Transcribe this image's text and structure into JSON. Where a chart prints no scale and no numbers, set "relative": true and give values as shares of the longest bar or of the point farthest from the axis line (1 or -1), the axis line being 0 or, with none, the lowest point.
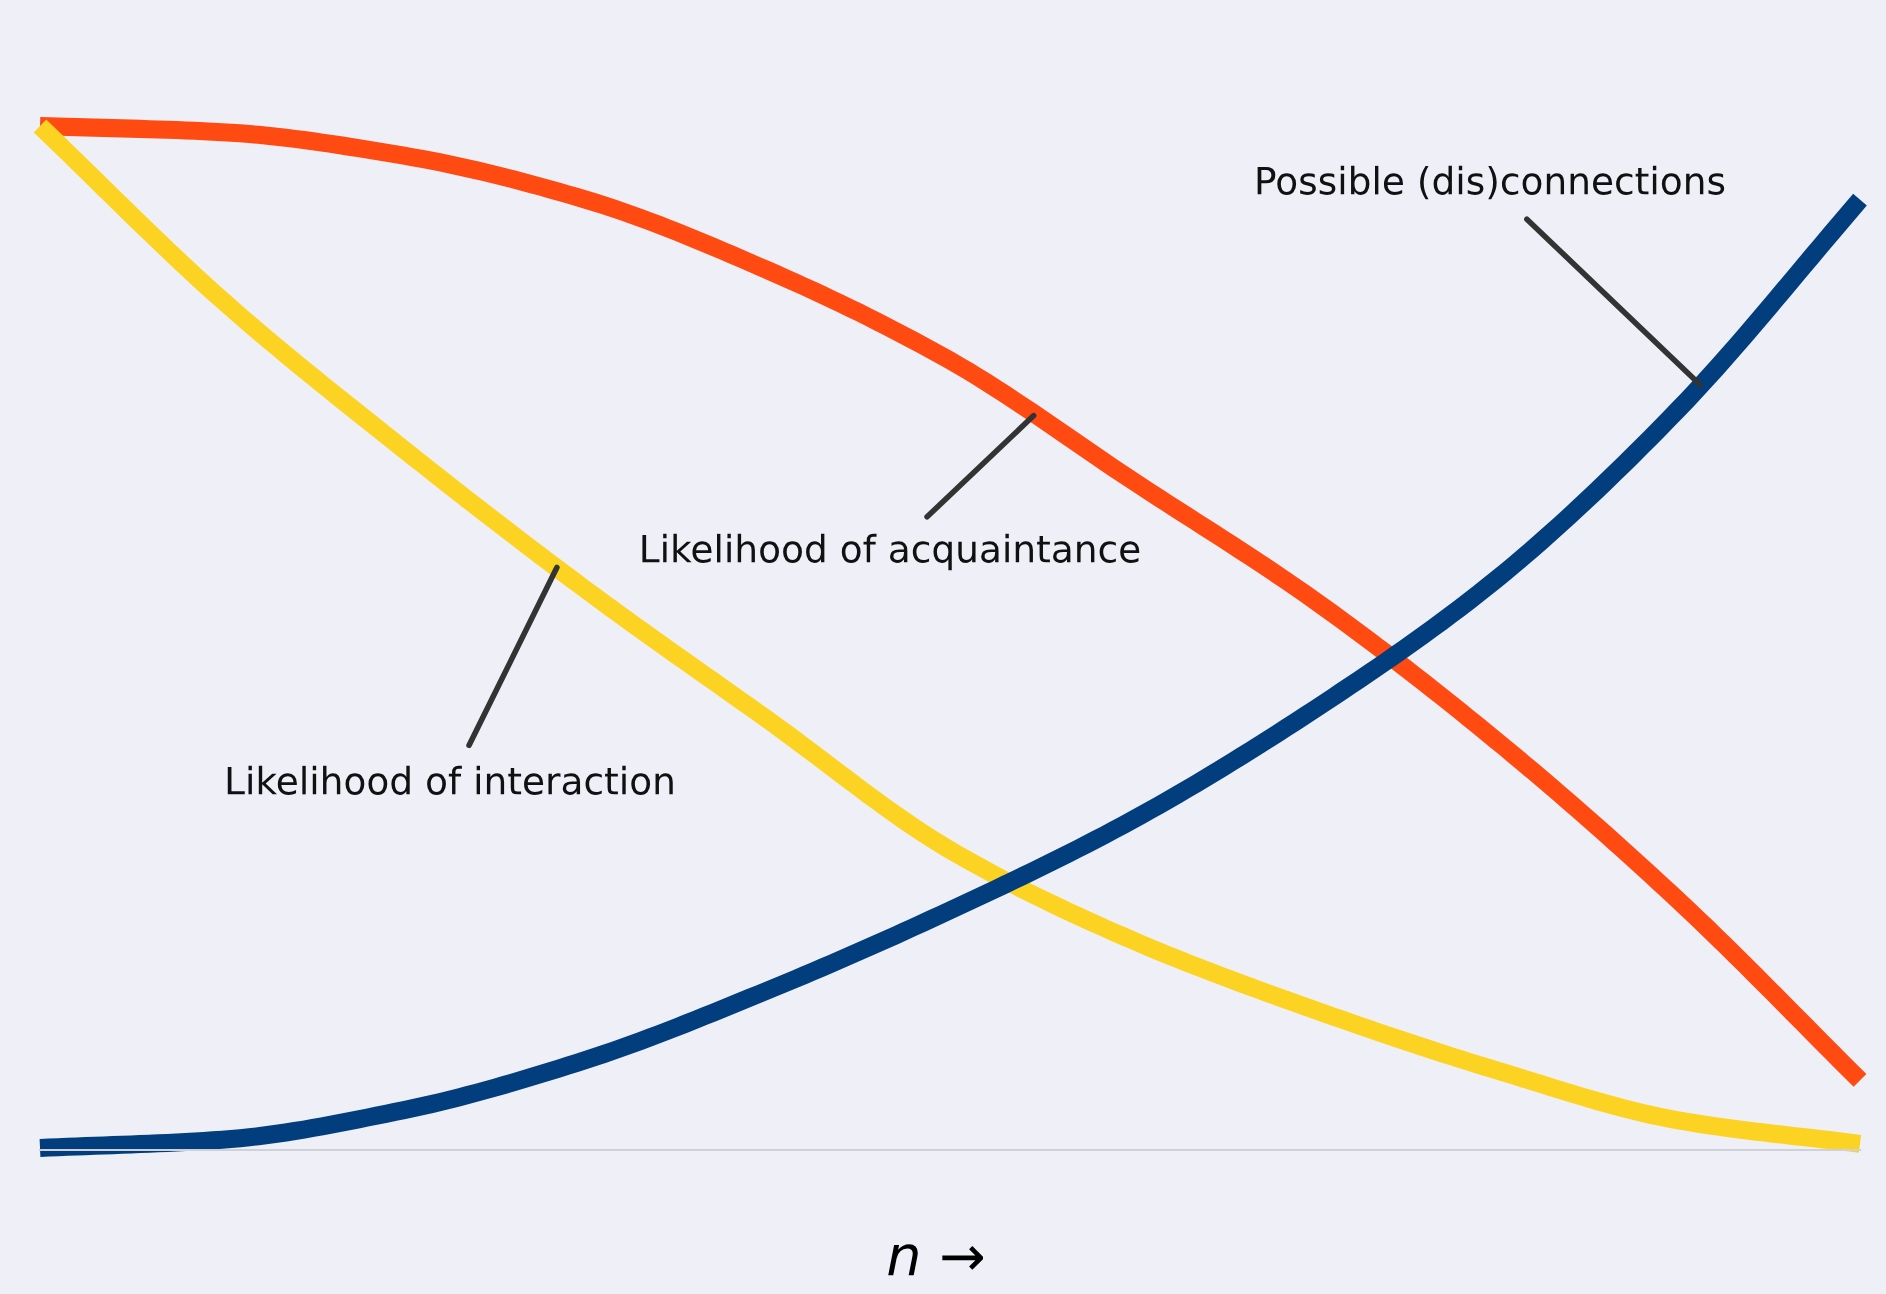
{
  "chart_data": {
    "type": "line",
    "relative": true,
    "xlabel": "n →",
    "legend": false,
    "grid": false,
    "categories": [
      null,
      null,
      null,
      null,
      null,
      null,
      null,
      null,
      null,
      null,
      null
    ],
    "series": [
      {
        "name": "Likelihood of acquaintance",
        "color": "#ff4a12",
        "values": [
          1.0,
          0.994,
          0.971,
          0.928,
          0.859,
          0.771,
          0.654,
          0.537,
          0.4,
          0.244,
          0.068
        ]
      },
      {
        "name": "Likelihood of interaction",
        "color": "#fdd323",
        "values": [
          1.0,
          0.83,
          0.684,
          0.547,
          0.42,
          0.293,
          0.205,
          0.137,
          0.078,
          0.029,
          0.006
        ]
      },
      {
        "name": "Possible (dis)connections",
        "color": "#023e7d",
        "values": [
          0.002,
          0.01,
          0.039,
          0.088,
          0.156,
          0.234,
          0.322,
          0.43,
          0.557,
          0.723,
          0.928
        ]
      }
    ]
  }
}
